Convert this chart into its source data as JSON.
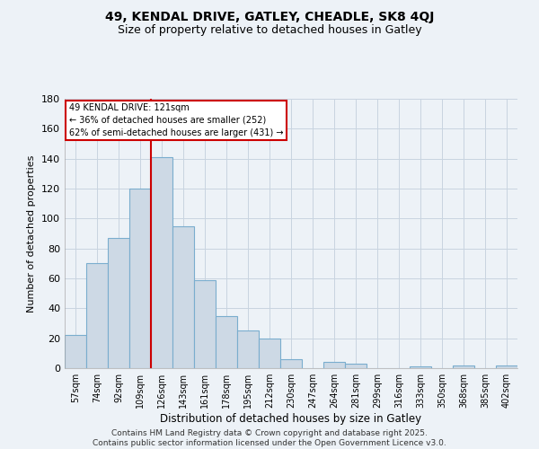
{
  "title": "49, KENDAL DRIVE, GATLEY, CHEADLE, SK8 4QJ",
  "subtitle": "Size of property relative to detached houses in Gatley",
  "xlabel": "Distribution of detached houses by size in Gatley",
  "ylabel": "Number of detached properties",
  "bar_labels": [
    "57sqm",
    "74sqm",
    "92sqm",
    "109sqm",
    "126sqm",
    "143sqm",
    "161sqm",
    "178sqm",
    "195sqm",
    "212sqm",
    "230sqm",
    "247sqm",
    "264sqm",
    "281sqm",
    "299sqm",
    "316sqm",
    "333sqm",
    "350sqm",
    "368sqm",
    "385sqm",
    "402sqm"
  ],
  "bar_values": [
    22,
    70,
    87,
    120,
    141,
    95,
    59,
    35,
    25,
    20,
    6,
    0,
    4,
    3,
    0,
    0,
    1,
    0,
    2,
    0,
    2
  ],
  "bar_color": "#cdd9e5",
  "bar_edge_color": "#7aadce",
  "vline_x_idx": 4,
  "vline_color": "#cc0000",
  "annotation_text_line1": "49 KENDAL DRIVE: 121sqm",
  "annotation_text_line2": "← 36% of detached houses are smaller (252)",
  "annotation_text_line3": "62% of semi-detached houses are larger (431) →",
  "annotation_box_facecolor": "#ffffff",
  "annotation_box_edgecolor": "#cc0000",
  "ylim": [
    0,
    180
  ],
  "yticks": [
    0,
    20,
    40,
    60,
    80,
    100,
    120,
    140,
    160,
    180
  ],
  "footer_line1": "Contains HM Land Registry data © Crown copyright and database right 2025.",
  "footer_line2": "Contains public sector information licensed under the Open Government Licence v3.0.",
  "bg_color": "#edf2f7",
  "grid_color": "#c8d4e0"
}
